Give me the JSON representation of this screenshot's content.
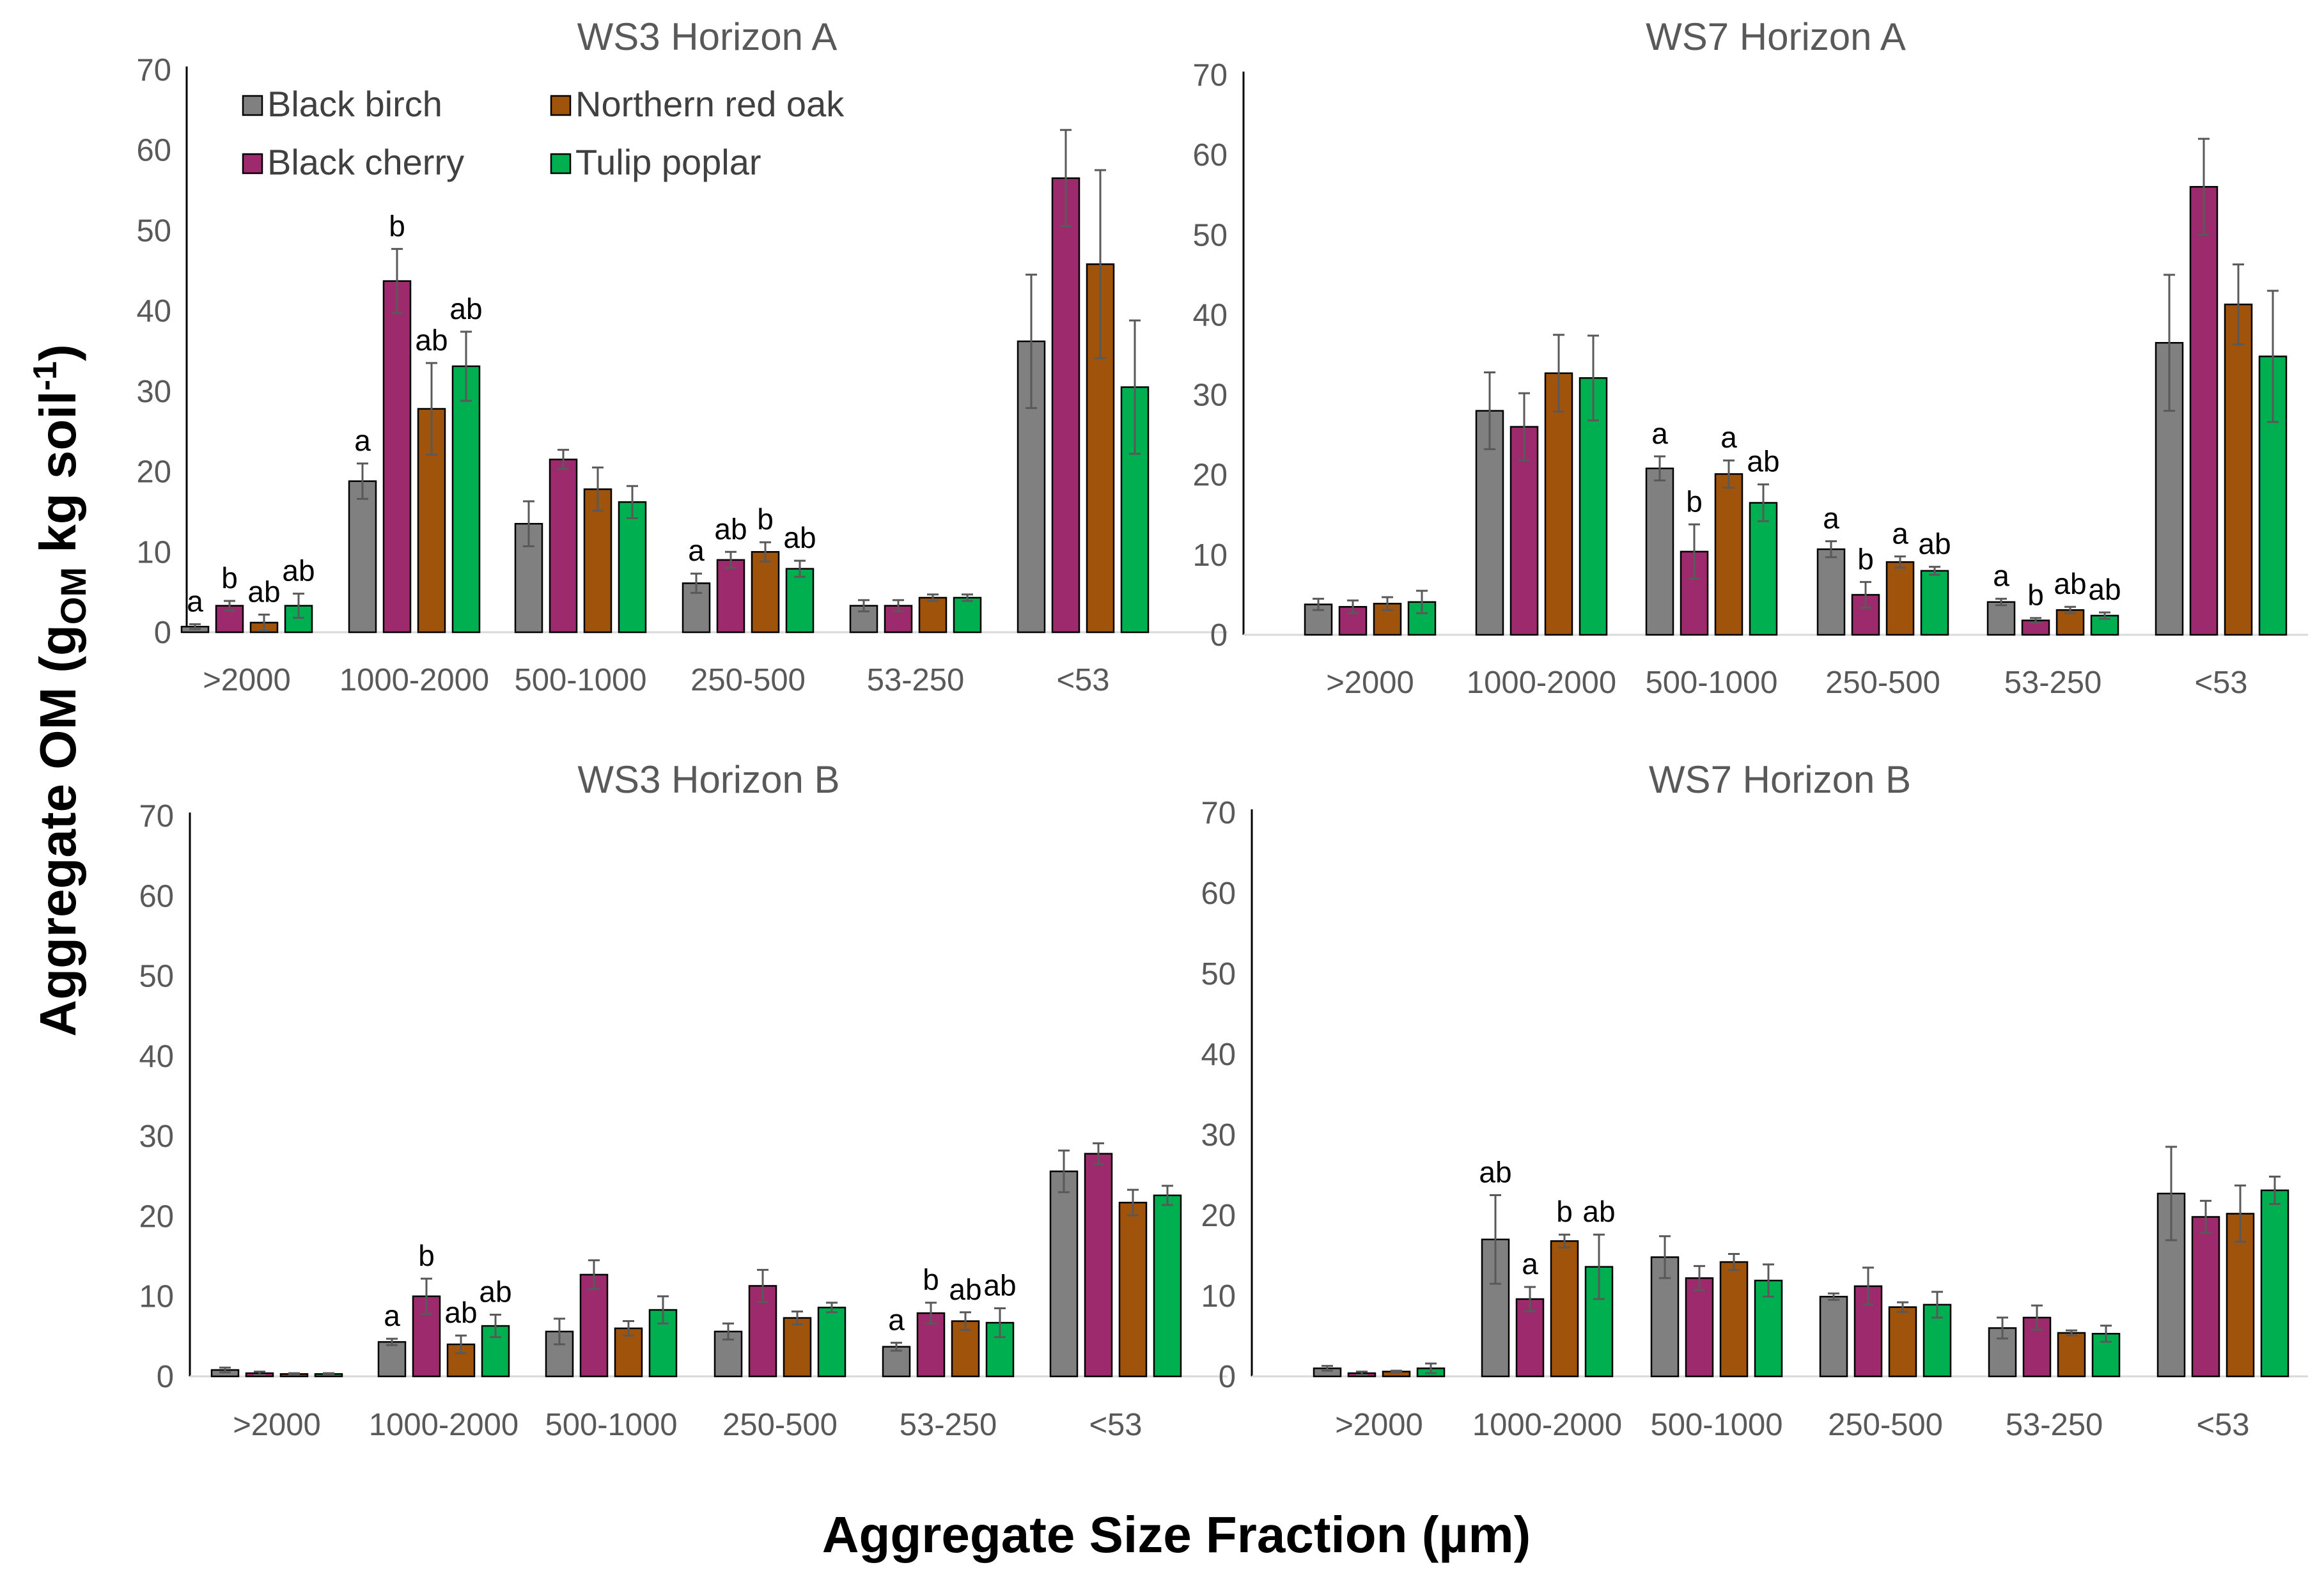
{
  "figure": {
    "ylabel_main": "Aggregate OM (g",
    "ylabel_sub": "OM",
    "ylabel_rest": " kg soil",
    "ylabel_sup": "-1",
    "ylabel_close": ")",
    "xlabel": "Aggregate Size Fraction (µm)"
  },
  "legend": [
    {
      "name": "Black birch",
      "color": "#808080"
    },
    {
      "name": "Northern red oak",
      "color": "#A0530B"
    },
    {
      "name": "Black cherry",
      "color": "#9E2A6E"
    },
    {
      "name": "Tulip poplar",
      "color": "#00B050"
    }
  ],
  "chart_data": [
    {
      "type": "bar",
      "title": "WS3 Horizon A",
      "categories": [
        ">2000",
        "1000-2000",
        "500-1000",
        "250-500",
        "53-250",
        "<53"
      ],
      "ylim": [
        0,
        70
      ],
      "yticks": [
        "0",
        "10",
        "20",
        "30",
        "40",
        "50",
        "60",
        "70"
      ],
      "series": [
        {
          "name": "Black birch",
          "values": [
            0.7,
            18.8,
            13.5,
            6.1,
            3.3,
            36.2
          ],
          "errors": [
            0.3,
            2.2,
            2.8,
            1.2,
            0.7,
            8.3
          ],
          "labels": [
            "a",
            "a",
            "",
            "a",
            "",
            ""
          ]
        },
        {
          "name": "Black cherry",
          "values": [
            3.3,
            43.7,
            21.5,
            9.0,
            3.3,
            56.5
          ],
          "errors": [
            0.6,
            4.0,
            1.2,
            1.0,
            0.7,
            6.0
          ],
          "labels": [
            "b",
            "b",
            "",
            "ab",
            "",
            ""
          ]
        },
        {
          "name": "Northern red oak",
          "values": [
            1.2,
            27.8,
            17.8,
            10.0,
            4.3,
            45.8
          ],
          "errors": [
            1.0,
            5.7,
            2.7,
            1.2,
            0.4,
            11.7
          ],
          "labels": [
            "ab",
            "ab",
            "",
            "b",
            "",
            ""
          ]
        },
        {
          "name": "Tulip poplar",
          "values": [
            3.3,
            33.1,
            16.2,
            7.9,
            4.3,
            30.5
          ],
          "errors": [
            1.5,
            4.3,
            2.0,
            1.0,
            0.4,
            8.3
          ],
          "labels": [
            "ab",
            "ab",
            "",
            "ab",
            "",
            ""
          ]
        }
      ]
    },
    {
      "type": "bar",
      "title": "WS7 Horizon A",
      "categories": [
        ">2000",
        "1000-2000",
        "500-1000",
        "250-500",
        "53-250",
        "<53"
      ],
      "ylim": [
        0,
        70
      ],
      "yticks": [
        "0",
        "10",
        "20",
        "30",
        "40",
        "50",
        "60",
        "70"
      ],
      "series": [
        {
          "name": "Black birch",
          "values": [
            3.8,
            28.0,
            20.8,
            10.7,
            4.1,
            36.5
          ],
          "errors": [
            0.7,
            4.8,
            1.5,
            1.0,
            0.4,
            8.5
          ],
          "labels": [
            "",
            "",
            "a",
            "a",
            "a",
            ""
          ]
        },
        {
          "name": "Black cherry",
          "values": [
            3.5,
            26.0,
            10.4,
            5.0,
            1.8,
            56.0
          ],
          "errors": [
            0.8,
            4.2,
            3.4,
            1.6,
            0.3,
            6.0
          ],
          "labels": [
            "",
            "",
            "b",
            "b",
            "b",
            ""
          ]
        },
        {
          "name": "Northern red oak",
          "values": [
            3.9,
            32.7,
            20.1,
            9.1,
            3.1,
            41.3
          ],
          "errors": [
            0.8,
            4.8,
            1.7,
            0.7,
            0.4,
            5.0
          ],
          "labels": [
            "",
            "",
            "a",
            "a",
            "ab",
            ""
          ]
        },
        {
          "name": "Tulip poplar",
          "values": [
            4.1,
            32.1,
            16.5,
            8.0,
            2.4,
            34.8
          ],
          "errors": [
            1.4,
            5.3,
            2.3,
            0.5,
            0.4,
            8.2
          ],
          "labels": [
            "",
            "",
            "ab",
            "ab",
            "ab",
            ""
          ]
        }
      ]
    },
    {
      "type": "bar",
      "title": "WS3 Horizon B",
      "categories": [
        ">2000",
        "1000-2000",
        "500-1000",
        "250-500",
        "53-250",
        "<53"
      ],
      "ylim": [
        0,
        70
      ],
      "yticks": [
        "0",
        "10",
        "20",
        "30",
        "40",
        "50",
        "60",
        "70"
      ],
      "series": [
        {
          "name": "Black birch",
          "values": [
            0.8,
            4.3,
            5.6,
            5.6,
            3.7,
            25.6
          ],
          "errors": [
            0.3,
            0.4,
            1.6,
            1.0,
            0.5,
            2.6
          ],
          "labels": [
            "",
            "a",
            "",
            "",
            "a",
            ""
          ]
        },
        {
          "name": "Black cherry",
          "values": [
            0.4,
            10.0,
            12.7,
            11.3,
            7.9,
            27.8
          ],
          "errors": [
            0.2,
            2.2,
            1.8,
            2.0,
            1.3,
            1.3
          ],
          "labels": [
            "",
            "b",
            "",
            "",
            "b",
            ""
          ]
        },
        {
          "name": "Northern red oak",
          "values": [
            0.3,
            4.0,
            6.0,
            7.3,
            6.9,
            21.7
          ],
          "errors": [
            0.1,
            1.1,
            0.9,
            0.8,
            1.1,
            1.6
          ],
          "labels": [
            "",
            "ab",
            "",
            "",
            "ab",
            ""
          ]
        },
        {
          "name": "Tulip poplar",
          "values": [
            0.3,
            6.3,
            8.3,
            8.6,
            6.7,
            22.6
          ],
          "errors": [
            0.1,
            1.4,
            1.7,
            0.6,
            1.8,
            1.2
          ],
          "labels": [
            "",
            "ab",
            "",
            "",
            "ab",
            ""
          ]
        }
      ]
    },
    {
      "type": "bar",
      "title": "WS7 Horizon B",
      "categories": [
        ">2000",
        "1000-2000",
        "500-1000",
        "250-500",
        "53-250",
        "<53"
      ],
      "ylim": [
        0,
        70
      ],
      "yticks": [
        "0",
        "10",
        "20",
        "30",
        "40",
        "50",
        "60",
        "70"
      ],
      "series": [
        {
          "name": "Black birch",
          "values": [
            1.0,
            17.0,
            14.8,
            9.9,
            6.0,
            22.7
          ],
          "errors": [
            0.3,
            5.5,
            2.6,
            0.4,
            1.3,
            5.8
          ],
          "labels": [
            "",
            "ab",
            "",
            "",
            "",
            ""
          ]
        },
        {
          "name": "Black cherry",
          "values": [
            0.4,
            9.6,
            12.2,
            11.2,
            7.3,
            19.8
          ],
          "errors": [
            0.2,
            1.5,
            1.5,
            2.3,
            1.5,
            2.0
          ],
          "labels": [
            "",
            "a",
            "",
            "",
            "",
            ""
          ]
        },
        {
          "name": "Northern red oak",
          "values": [
            0.6,
            16.8,
            14.2,
            8.6,
            5.4,
            20.2
          ],
          "errors": [
            0.1,
            0.8,
            1.0,
            0.6,
            0.3,
            3.5
          ],
          "labels": [
            "",
            "b",
            "",
            "",
            "",
            ""
          ]
        },
        {
          "name": "Tulip poplar",
          "values": [
            1.0,
            13.6,
            11.9,
            8.9,
            5.3,
            23.1
          ],
          "errors": [
            0.6,
            4.0,
            2.0,
            1.6,
            1.0,
            1.7
          ],
          "labels": [
            "",
            "ab",
            "",
            "",
            "",
            ""
          ]
        }
      ]
    }
  ]
}
